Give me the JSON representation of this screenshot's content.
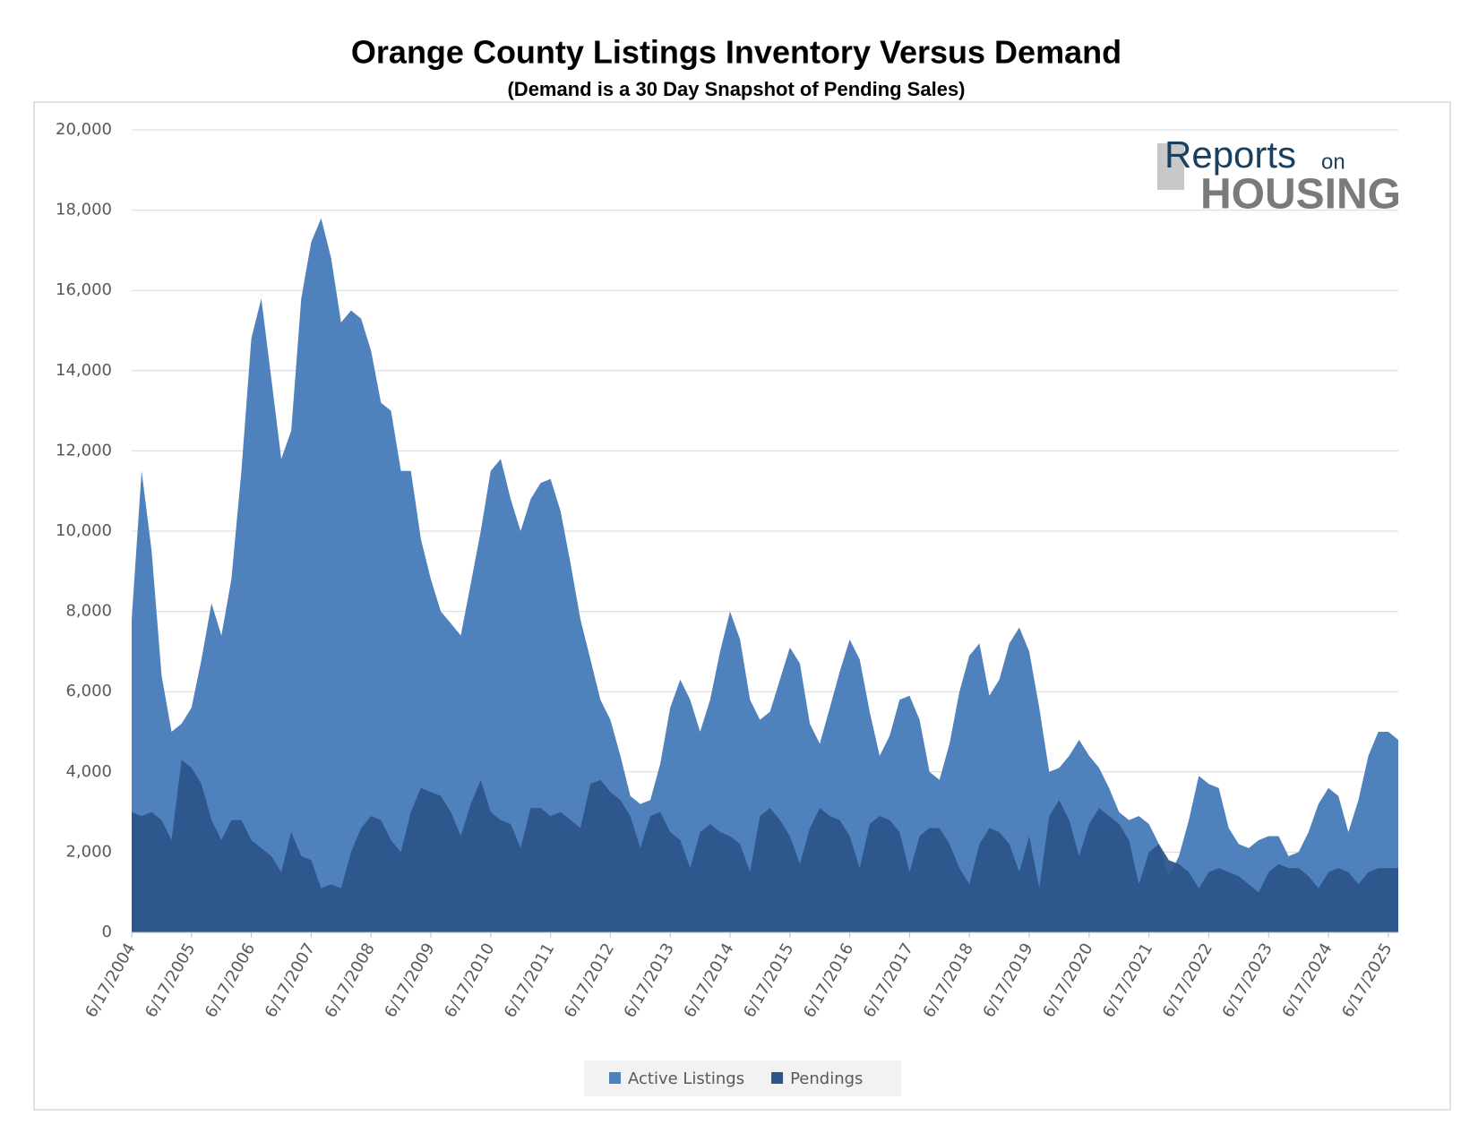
{
  "chart_data": {
    "type": "area",
    "title": "Orange County Listings Inventory Versus Demand",
    "subtitle": "(Demand is a 30 Day Snapshot of Pending Sales)",
    "logo": {
      "reports": "Reports",
      "on": "on",
      "housing": "HOUSING"
    },
    "categories": [
      "6/17/2004",
      null,
      null,
      null,
      null,
      null,
      "6/17/2005",
      null,
      null,
      null,
      null,
      null,
      "6/17/2006",
      null,
      null,
      null,
      null,
      null,
      "6/17/2007",
      null,
      null,
      null,
      null,
      null,
      "6/17/2008",
      null,
      null,
      null,
      null,
      null,
      "6/17/2009",
      null,
      null,
      null,
      null,
      null,
      "6/17/2010",
      null,
      null,
      null,
      null,
      null,
      "6/17/2011",
      null,
      null,
      null,
      null,
      null,
      "6/17/2012",
      null,
      null,
      null,
      null,
      null,
      "6/17/2013",
      null,
      null,
      null,
      null,
      null,
      "6/17/2014",
      null,
      null,
      null,
      null,
      null,
      "6/17/2015",
      null,
      null,
      null,
      null,
      null,
      "6/17/2016",
      null,
      null,
      null,
      null,
      null,
      "6/17/2017",
      null,
      null,
      null,
      null,
      null,
      "6/17/2018",
      null,
      null,
      null,
      null,
      null,
      "6/17/2019",
      null,
      null,
      null,
      null,
      null,
      "6/17/2020",
      null,
      null,
      null,
      null,
      null,
      "6/17/2021",
      null,
      null,
      null,
      null,
      null,
      "6/17/2022",
      null,
      null,
      null,
      null,
      null,
      "6/17/2023",
      null,
      null,
      null,
      null,
      null,
      "6/17/2024",
      null,
      null,
      null,
      null,
      null,
      "6/17/2025",
      null
    ],
    "series": [
      {
        "name": "Active Listings",
        "color": "#4f81bd",
        "values": [
          7800,
          11500,
          9500,
          6400,
          5000,
          5200,
          5600,
          6800,
          8200,
          7400,
          8800,
          11500,
          14800,
          15800,
          13800,
          11800,
          12500,
          15800,
          17200,
          17800,
          16800,
          15200,
          15500,
          15300,
          14500,
          13200,
          13000,
          11500,
          11500,
          9800,
          8800,
          8000,
          7700,
          7400,
          8700,
          10000,
          11500,
          11800,
          10800,
          10000,
          10800,
          11200,
          11300,
          10500,
          9200,
          7800,
          6800,
          5800,
          5300,
          4400,
          3400,
          3200,
          3300,
          4200,
          5600,
          6300,
          5800,
          5000,
          5800,
          7000,
          8000,
          7300,
          5800,
          5300,
          5500,
          6300,
          7100,
          6700,
          5200,
          4700,
          5600,
          6500,
          7300,
          6800,
          5500,
          4400,
          4900,
          5800,
          5900,
          5300,
          4000,
          3800,
          4700,
          6000,
          6900,
          7200,
          5900,
          6300,
          7200,
          7600,
          7000,
          5600,
          4000,
          4100,
          4400,
          4800,
          4400,
          4100,
          3600,
          3000,
          2800,
          2900,
          2700,
          2200,
          1400,
          1900,
          2800,
          3900,
          3700,
          3600,
          2600,
          2200,
          2100,
          2300,
          2400,
          2400,
          1900,
          2000,
          2500,
          3200,
          3600,
          3400,
          2500,
          3300,
          4400,
          5000,
          5000,
          4800
        ]
      },
      {
        "name": "Pendings",
        "color": "#2b5489",
        "values": [
          3000,
          2900,
          3000,
          2800,
          2300,
          4300,
          4100,
          3700,
          2800,
          2300,
          2800,
          2800,
          2300,
          2100,
          1900,
          1500,
          2500,
          1900,
          1800,
          1100,
          1200,
          1100,
          2000,
          2600,
          2900,
          2800,
          2300,
          2000,
          3000,
          3600,
          3500,
          3400,
          3000,
          2400,
          3200,
          3800,
          3000,
          2800,
          2700,
          2100,
          3100,
          3100,
          2900,
          3000,
          2800,
          2600,
          3700,
          3800,
          3500,
          3300,
          2900,
          2100,
          2900,
          3000,
          2500,
          2300,
          1600,
          2500,
          2700,
          2500,
          2400,
          2200,
          1500,
          2900,
          3100,
          2800,
          2400,
          1700,
          2600,
          3100,
          2900,
          2800,
          2400,
          1600,
          2700,
          2900,
          2800,
          2500,
          1500,
          2400,
          2600,
          2600,
          2200,
          1600,
          1200,
          2200,
          2600,
          2500,
          2200,
          1500,
          2400,
          1100,
          2900,
          3300,
          2800,
          1900,
          2700,
          3100,
          2900,
          2700,
          2300,
          1200,
          2000,
          2200,
          1800,
          1700,
          1500,
          1100,
          1500,
          1600,
          1500,
          1400,
          1200,
          1000,
          1500,
          1700,
          1600,
          1600,
          1400,
          1100,
          1500,
          1600,
          1500,
          1200,
          1500,
          1600,
          1600,
          1600
        ]
      }
    ],
    "ylim": [
      0,
      20000
    ],
    "yticks": [
      0,
      {
        "value": 2000,
        "label": "2,000"
      },
      {
        "value": 4000,
        "label": "4,000"
      },
      {
        "value": 6000,
        "label": "6,000"
      },
      {
        "value": 8000,
        "label": "8,000"
      },
      {
        "value": 10000,
        "label": "10,000"
      },
      {
        "value": 12000,
        "label": "12,000"
      },
      {
        "value": 14000,
        "label": "14,000"
      },
      {
        "value": 16000,
        "label": "16,000"
      },
      {
        "value": 18000,
        "label": "18,000"
      },
      {
        "value": 20000,
        "label": "20,000"
      }
    ],
    "grid": true,
    "legend": "bottom"
  }
}
